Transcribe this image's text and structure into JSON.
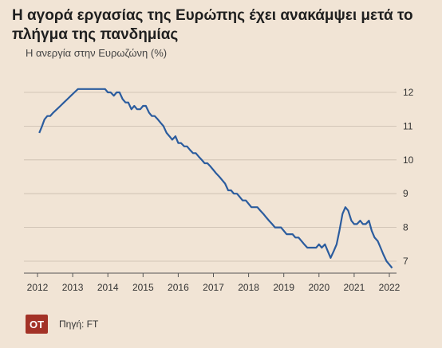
{
  "title": "Η αγορά εργασίας της Ευρώπης έχει ανακάμψει μετά το πλήγμα της πανδημίας",
  "chart_data": {
    "type": "line",
    "title": "Η αγορά εργασίας της Ευρώπης έχει ανακάμψει μετά το πλήγμα της πανδημίας",
    "subtitle": "Η ανεργία στην Ευρωζώνη (%)",
    "x_ticks": [
      "2012",
      "2013",
      "2014",
      "2015",
      "2016",
      "2017",
      "2018",
      "2019",
      "2020",
      "2021",
      "2022"
    ],
    "y_ticks": [
      "7",
      "8",
      "9",
      "10",
      "11",
      "12"
    ],
    "xlim": [
      2012,
      2022
    ],
    "ylim": [
      6.7,
      12.2
    ],
    "grid": "horizontal",
    "line_color": "#2b5c9e",
    "series": [
      {
        "x": [
          2012.05,
          2012.13,
          2012.2,
          2012.28,
          2012.36,
          2012.45,
          2012.55,
          2012.65,
          2012.75,
          2012.85,
          2012.95,
          2013.05,
          2013.15,
          2013.25,
          2013.35,
          2013.45,
          2013.55,
          2013.65,
          2013.75,
          2013.85,
          2013.92,
          2014.0,
          2014.08,
          2014.17,
          2014.25,
          2014.33,
          2014.42,
          2014.5,
          2014.58,
          2014.67,
          2014.75,
          2014.83,
          2014.92,
          2015.0,
          2015.08,
          2015.17,
          2015.25,
          2015.33,
          2015.42,
          2015.5,
          2015.58,
          2015.67,
          2015.75,
          2015.83,
          2015.92,
          2016.0,
          2016.08,
          2016.17,
          2016.25,
          2016.33,
          2016.42,
          2016.5,
          2016.58,
          2016.67,
          2016.75,
          2016.83,
          2016.92,
          2017.0,
          2017.08,
          2017.17,
          2017.25,
          2017.33,
          2017.42,
          2017.5,
          2017.58,
          2017.67,
          2017.75,
          2017.83,
          2017.92,
          2018.0,
          2018.08,
          2018.17,
          2018.25,
          2018.33,
          2018.42,
          2018.5,
          2018.58,
          2018.67,
          2018.75,
          2018.83,
          2018.92,
          2019.0,
          2019.08,
          2019.17,
          2019.25,
          2019.33,
          2019.42,
          2019.5,
          2019.58,
          2019.67,
          2019.75,
          2019.83,
          2019.92,
          2020.0,
          2020.08,
          2020.17,
          2020.25,
          2020.33,
          2020.42,
          2020.5,
          2020.58,
          2020.67,
          2020.75,
          2020.83,
          2020.92,
          2021.0,
          2021.08,
          2021.17,
          2021.25,
          2021.33,
          2021.42,
          2021.5,
          2021.58,
          2021.67,
          2021.75,
          2021.83,
          2021.92,
          2022.0,
          2022.08
        ],
        "y": [
          10.8,
          11.0,
          11.2,
          11.3,
          11.3,
          11.4,
          11.5,
          11.6,
          11.7,
          11.8,
          11.9,
          12.0,
          12.1,
          12.1,
          12.1,
          12.1,
          12.1,
          12.1,
          12.1,
          12.1,
          12.1,
          12.0,
          12.0,
          11.9,
          12.0,
          12.0,
          11.8,
          11.7,
          11.7,
          11.5,
          11.6,
          11.5,
          11.5,
          11.6,
          11.6,
          11.4,
          11.3,
          11.3,
          11.2,
          11.1,
          11.0,
          10.8,
          10.7,
          10.6,
          10.7,
          10.5,
          10.5,
          10.4,
          10.4,
          10.3,
          10.2,
          10.2,
          10.1,
          10.0,
          9.9,
          9.9,
          9.8,
          9.7,
          9.6,
          9.5,
          9.4,
          9.3,
          9.1,
          9.1,
          9.0,
          9.0,
          8.9,
          8.8,
          8.8,
          8.7,
          8.6,
          8.6,
          8.6,
          8.5,
          8.4,
          8.3,
          8.2,
          8.1,
          8.0,
          8.0,
          8.0,
          7.9,
          7.8,
          7.8,
          7.8,
          7.7,
          7.7,
          7.6,
          7.5,
          7.4,
          7.4,
          7.4,
          7.4,
          7.5,
          7.4,
          7.5,
          7.3,
          7.1,
          7.3,
          7.5,
          7.9,
          8.4,
          8.6,
          8.5,
          8.2,
          8.1,
          8.1,
          8.2,
          8.1,
          8.1,
          8.2,
          7.9,
          7.7,
          7.6,
          7.4,
          7.2,
          7.0,
          6.9,
          6.8
        ]
      }
    ]
  },
  "footer": {
    "logo_text": "OT",
    "source": "Πηγή: FT"
  }
}
